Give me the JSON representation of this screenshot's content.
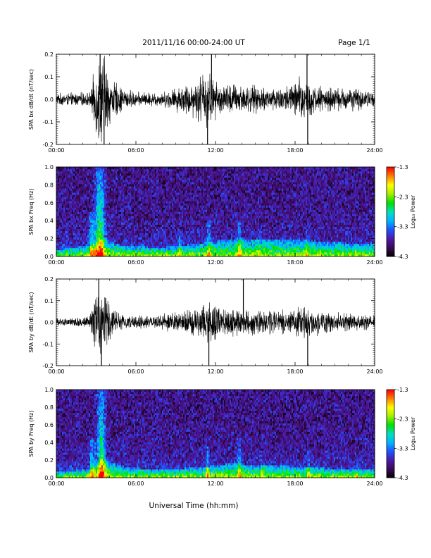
{
  "header": {
    "title": "2011/11/16  00:00-24:00 UT",
    "page": "Page 1/1"
  },
  "xlabel": "Universal Time (hh:mm)",
  "x_ticks": [
    "00:00",
    "06:00",
    "12:00",
    "18:00",
    "24:00"
  ],
  "colorbar": {
    "label": "Log₁₀ Power",
    "ticks": [
      "-1.3",
      "-2.3",
      "-3.3",
      "-4.3"
    ],
    "range": [
      -4.3,
      -1.3
    ],
    "colors": [
      "#000000",
      "#3a0a55",
      "#4b1aa8",
      "#2050ff",
      "#00b4ff",
      "#00e0c0",
      "#00e000",
      "#a0f000",
      "#ffff00",
      "#ff8000",
      "#ff0000"
    ]
  },
  "chart_data": [
    {
      "type": "line",
      "ylabel": "SPA bx dB/dt (nT/sec)",
      "y_ticks": [
        "0.2",
        "0.1",
        "0.0",
        "-0.1",
        "-0.2"
      ],
      "ylim": [
        -0.2,
        0.2
      ],
      "xlim": [
        0,
        24
      ],
      "activity": [
        [
          0,
          0.025
        ],
        [
          2.6,
          0.03
        ],
        [
          2.9,
          0.14
        ],
        [
          3.5,
          0.22
        ],
        [
          4.1,
          0.09
        ],
        [
          5,
          0.05
        ],
        [
          6,
          0.03
        ],
        [
          8,
          0.03
        ],
        [
          9,
          0.05
        ],
        [
          10.5,
          0.08
        ],
        [
          11.3,
          0.14
        ],
        [
          11.8,
          0.09
        ],
        [
          12.5,
          0.06
        ],
        [
          13.2,
          0.07
        ],
        [
          14.5,
          0.06
        ],
        [
          16,
          0.05
        ],
        [
          17.5,
          0.06
        ],
        [
          18.7,
          0.11
        ],
        [
          19.3,
          0.06
        ],
        [
          21,
          0.05
        ],
        [
          22.5,
          0.05
        ],
        [
          24,
          0.03
        ]
      ],
      "spikes": [
        [
          3.3,
          0.2
        ],
        [
          3.6,
          -0.2
        ],
        [
          11.4,
          -0.2
        ],
        [
          11.7,
          0.2
        ],
        [
          18.9,
          0.2
        ],
        [
          18.95,
          -0.2
        ]
      ]
    },
    {
      "type": "heatmap",
      "ylabel": "SPA bx Freq (Hz)",
      "y_ticks": [
        "1.0",
        "0.8",
        "0.6",
        "0.4",
        "0.2",
        "0.0"
      ],
      "ylim": [
        0,
        1
      ],
      "xlim": [
        0,
        24
      ],
      "zlim": [
        -4.3,
        -1.3
      ],
      "bursts": [
        [
          3.3,
          1.0,
          0.9,
          0.35
        ],
        [
          2.7,
          0.5,
          0.6,
          0.25
        ],
        [
          11.5,
          0.4,
          0.5,
          0.15
        ],
        [
          13.8,
          0.4,
          0.4,
          0.2
        ],
        [
          18.9,
          0.3,
          0.4,
          0.1
        ],
        [
          22.6,
          0.2,
          0.3,
          0.1
        ],
        [
          9.3,
          0.3,
          0.4,
          0.12
        ],
        [
          15.3,
          0.3,
          0.3,
          0.15
        ]
      ],
      "band": [
        [
          0,
          0.08
        ],
        [
          2.5,
          0.12
        ],
        [
          3.5,
          0.2
        ],
        [
          5,
          0.12
        ],
        [
          8,
          0.1
        ],
        [
          11,
          0.15
        ],
        [
          13,
          0.2
        ],
        [
          15,
          0.2
        ],
        [
          17,
          0.2
        ],
        [
          19,
          0.18
        ],
        [
          21,
          0.16
        ],
        [
          24,
          0.14
        ]
      ]
    },
    {
      "type": "line",
      "ylabel": "SPA by dB/dt (nT/sec)",
      "y_ticks": [
        "0.2",
        "0.1",
        "0.0",
        "-0.1",
        "-0.2"
      ],
      "ylim": [
        -0.2,
        0.2
      ],
      "xlim": [
        0,
        24
      ],
      "activity": [
        [
          0,
          0.015
        ],
        [
          2.5,
          0.025
        ],
        [
          2.8,
          0.11
        ],
        [
          3.4,
          0.16
        ],
        [
          4.2,
          0.06
        ],
        [
          5,
          0.035
        ],
        [
          7,
          0.025
        ],
        [
          9.5,
          0.05
        ],
        [
          11,
          0.08
        ],
        [
          11.5,
          0.11
        ],
        [
          12.5,
          0.06
        ],
        [
          14,
          0.07
        ],
        [
          15.5,
          0.05
        ],
        [
          17.5,
          0.05
        ],
        [
          18.8,
          0.08
        ],
        [
          20,
          0.05
        ],
        [
          22,
          0.04
        ],
        [
          24,
          0.03
        ]
      ],
      "spikes": [
        [
          3.2,
          0.2
        ],
        [
          3.4,
          -0.2
        ],
        [
          11.5,
          -0.2
        ],
        [
          14.1,
          0.2
        ],
        [
          18.95,
          -0.2
        ]
      ]
    },
    {
      "type": "heatmap",
      "ylabel": "SPA by Freq (Hz)",
      "y_ticks": [
        "1.0",
        "0.8",
        "0.6",
        "0.4",
        "0.2",
        "0.0"
      ],
      "ylim": [
        0,
        1
      ],
      "xlim": [
        0,
        24
      ],
      "zlim": [
        -4.3,
        -1.3
      ],
      "bursts": [
        [
          3.4,
          1.0,
          0.85,
          0.3
        ],
        [
          2.7,
          0.45,
          0.6,
          0.2
        ],
        [
          11.4,
          0.35,
          0.5,
          0.15
        ],
        [
          13.8,
          0.45,
          0.4,
          0.2
        ],
        [
          19.0,
          0.3,
          0.4,
          0.1
        ],
        [
          22.7,
          0.2,
          0.3,
          0.1
        ],
        [
          15.5,
          0.25,
          0.3,
          0.1
        ]
      ],
      "band": [
        [
          0,
          0.06
        ],
        [
          2.5,
          0.1
        ],
        [
          3.5,
          0.22
        ],
        [
          5,
          0.12
        ],
        [
          8,
          0.09
        ],
        [
          11,
          0.12
        ],
        [
          13,
          0.16
        ],
        [
          15,
          0.15
        ],
        [
          17,
          0.14
        ],
        [
          19,
          0.12
        ],
        [
          21,
          0.1
        ],
        [
          24,
          0.09
        ]
      ]
    }
  ]
}
